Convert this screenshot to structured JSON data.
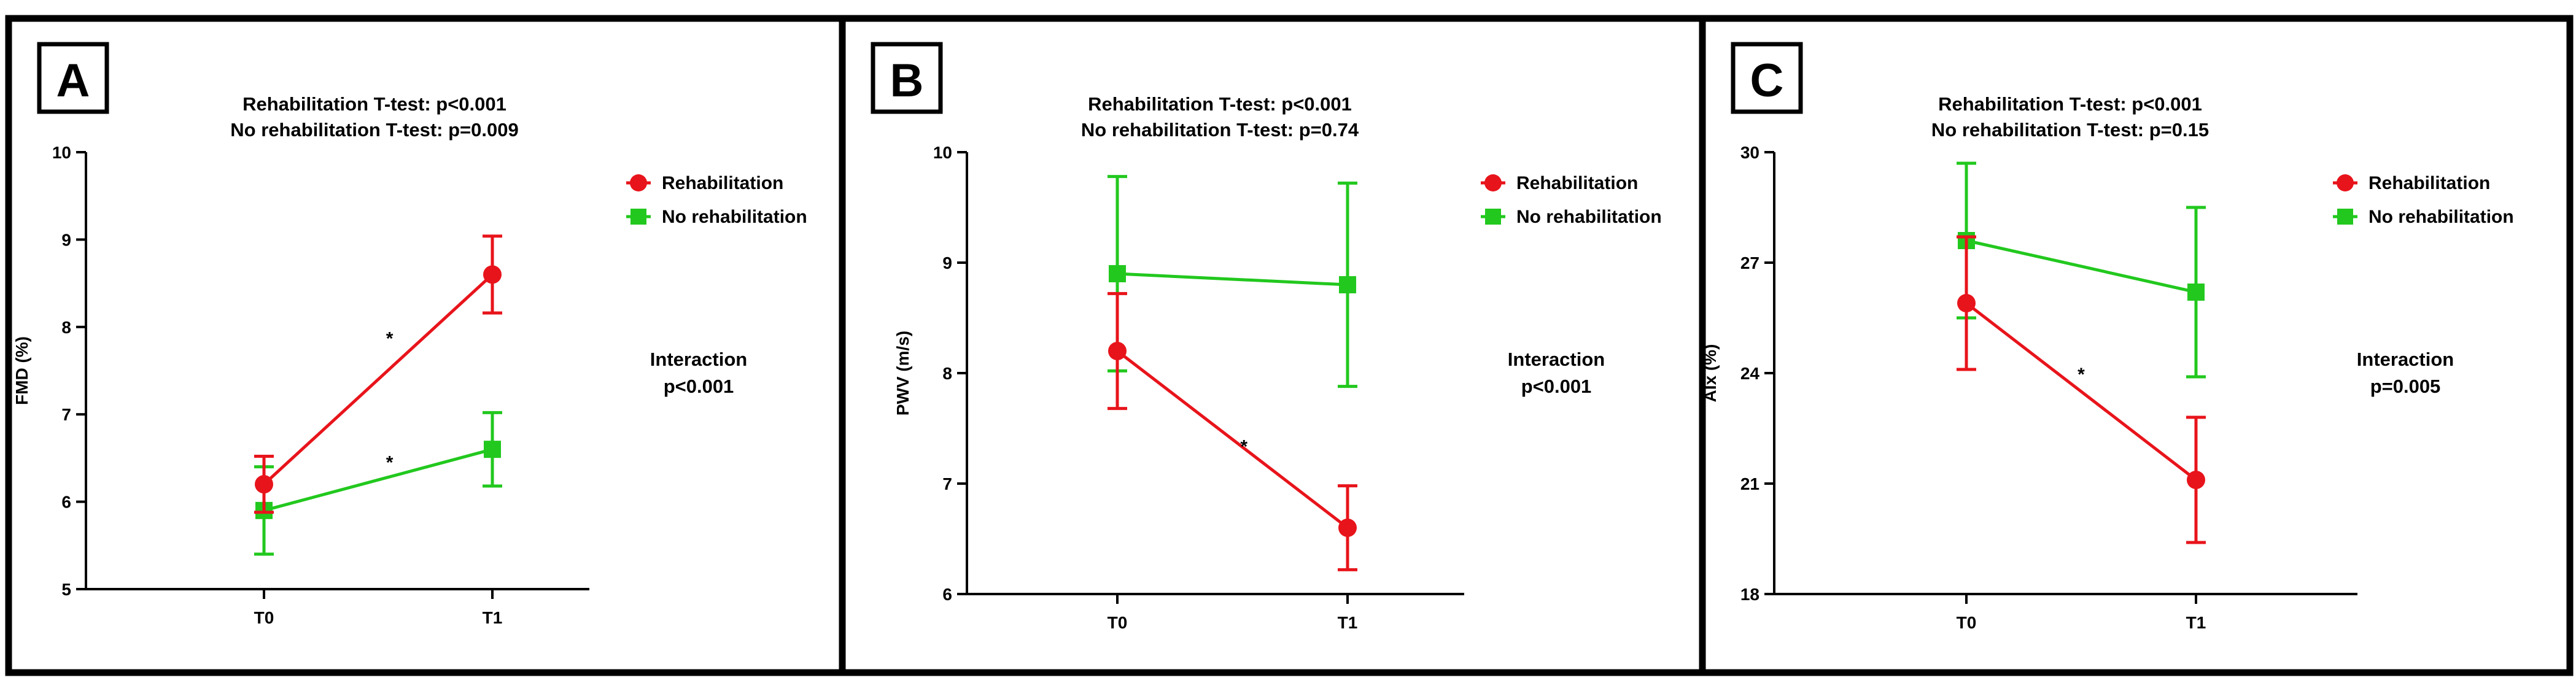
{
  "chart_data": [
    {
      "type": "line",
      "panel_label": "A",
      "title_lines": [
        "Rehabilitation T-test: p<0.001",
        "No rehabilitation T-test: p=0.009"
      ],
      "xlabel": "",
      "ylabel": "FMD (%)",
      "categories": [
        "T0",
        "T1"
      ],
      "ylim": [
        5,
        10
      ],
      "yticks": [
        "5",
        "6",
        "7",
        "8",
        "9",
        "10"
      ],
      "tick_values": [
        5,
        6,
        7,
        8,
        9,
        10
      ],
      "series": [
        {
          "name": "Rehabilitation",
          "marker": "circle",
          "color": "#e8141b",
          "values": [
            6.2,
            8.6
          ],
          "err": [
            0.32,
            0.44
          ]
        },
        {
          "name": "No rehabilitation",
          "marker": "square",
          "color": "#22c81e",
          "values": [
            5.9,
            6.6
          ],
          "err": [
            0.5,
            0.42
          ]
        }
      ],
      "annotations": [
        {
          "text": "*",
          "x": 0.55,
          "y": 7.8
        },
        {
          "text": "*",
          "x": 0.55,
          "y": 6.38
        }
      ],
      "interaction_lines": [
        "Interaction",
        "p<0.001"
      ]
    },
    {
      "type": "line",
      "panel_label": "B",
      "title_lines": [
        "Rehabilitation T-test: p<0.001",
        "No rehabilitation T-test: p=0.74"
      ],
      "xlabel": "",
      "ylabel": "PWV (m/s)",
      "categories": [
        "T0",
        "T1"
      ],
      "ylim": [
        6,
        10
      ],
      "yticks": [
        "6",
        "7",
        "8",
        "9",
        "10"
      ],
      "tick_values": [
        6,
        7,
        8,
        9,
        10
      ],
      "series": [
        {
          "name": "Rehabilitation",
          "marker": "circle",
          "color": "#e8141b",
          "values": [
            8.2,
            6.6
          ],
          "err": [
            0.52,
            0.38
          ]
        },
        {
          "name": "No rehabilitation",
          "marker": "square",
          "color": "#22c81e",
          "values": [
            8.9,
            8.8
          ],
          "err": [
            0.88,
            0.92
          ]
        }
      ],
      "annotations": [
        {
          "text": "*",
          "x": 0.55,
          "y": 7.28
        }
      ],
      "interaction_lines": [
        "Interaction",
        "p<0.001"
      ]
    },
    {
      "type": "line",
      "panel_label": "C",
      "title_lines": [
        "Rehabilitation T-test: p<0.001",
        "No rehabilitation T-test: p=0.15"
      ],
      "xlabel": "",
      "ylabel": "AIx (%)",
      "categories": [
        "T0",
        "T1"
      ],
      "ylim": [
        18,
        30
      ],
      "yticks": [
        "18",
        "21",
        "24",
        "27",
        "30"
      ],
      "tick_values": [
        18,
        21,
        24,
        27,
        30
      ],
      "series": [
        {
          "name": "Rehabilitation",
          "marker": "circle",
          "color": "#e8141b",
          "values": [
            25.9,
            21.1
          ],
          "err": [
            1.8,
            1.7
          ]
        },
        {
          "name": "No rehabilitation",
          "marker": "square",
          "color": "#22c81e",
          "values": [
            27.6,
            26.2
          ],
          "err": [
            2.1,
            2.3
          ]
        }
      ],
      "annotations": [
        {
          "text": "*",
          "x": 0.5,
          "y": 23.8
        }
      ],
      "interaction_lines": [
        "Interaction",
        "p=0.005"
      ]
    }
  ]
}
